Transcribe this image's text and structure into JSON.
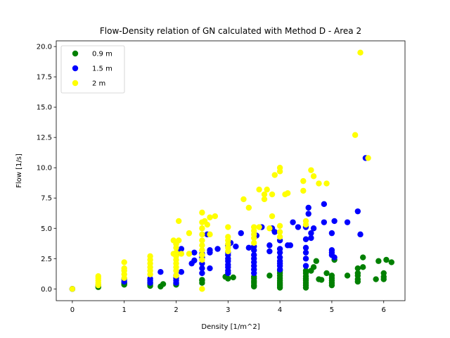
{
  "chart_data": {
    "type": "scatter",
    "title": "Flow-Density relation of GN calculated with Method D - Area 2",
    "xlabel": "Density [1/m^2]",
    "ylabel": "Flow [1/s]",
    "xlim": [
      -0.31,
      6.41
    ],
    "ylim": [
      -0.97,
      20.47
    ],
    "xticks": [
      "0",
      "1",
      "2",
      "3",
      "4",
      "5",
      "6"
    ],
    "yticks": [
      "0.0",
      "2.5",
      "5.0",
      "7.5",
      "10.0",
      "12.5",
      "15.0",
      "17.5",
      "20.0"
    ],
    "grid": false,
    "legend_position": "top-left",
    "series": [
      {
        "name": "0.9 m",
        "color": "#008000",
        "points": [
          [
            0,
            0
          ],
          [
            0.5,
            0.15
          ],
          [
            0.5,
            0.2
          ],
          [
            1,
            0.35
          ],
          [
            1,
            0.45
          ],
          [
            1,
            0.5
          ],
          [
            1.5,
            0.25
          ],
          [
            1.5,
            0.4
          ],
          [
            1.5,
            0.55
          ],
          [
            1.7,
            0.2
          ],
          [
            1.75,
            0.4
          ],
          [
            2,
            0.35
          ],
          [
            2,
            0.45
          ],
          [
            2.5,
            0.5
          ],
          [
            2.5,
            0.7
          ],
          [
            2.5,
            0.75
          ],
          [
            2.95,
            1.0
          ],
          [
            3,
            0.85
          ],
          [
            3.1,
            0.95
          ],
          [
            3.5,
            0.2
          ],
          [
            3.5,
            0.3
          ],
          [
            3.5,
            0.5
          ],
          [
            3.5,
            0.65
          ],
          [
            3.5,
            0.85
          ],
          [
            3.5,
            1.0
          ],
          [
            3.8,
            1.1
          ],
          [
            4,
            0.1
          ],
          [
            4,
            0.25
          ],
          [
            4,
            0.4
          ],
          [
            4,
            0.55
          ],
          [
            4,
            0.7
          ],
          [
            4,
            0.9
          ],
          [
            4,
            1.1
          ],
          [
            4,
            1.3
          ],
          [
            4,
            1.5
          ],
          [
            4.5,
            0.1
          ],
          [
            4.5,
            0.3
          ],
          [
            4.5,
            0.5
          ],
          [
            4.5,
            0.7
          ],
          [
            4.5,
            0.85
          ],
          [
            4.5,
            1.05
          ],
          [
            4.5,
            1.3
          ],
          [
            4.5,
            1.5
          ],
          [
            4.6,
            1.5
          ],
          [
            4.65,
            1.8
          ],
          [
            4.7,
            2.3
          ],
          [
            4.75,
            0.8
          ],
          [
            4.8,
            0.75
          ],
          [
            4.9,
            1.3
          ],
          [
            5,
            0.3
          ],
          [
            5,
            0.5
          ],
          [
            5,
            0.7
          ],
          [
            5,
            0.9
          ],
          [
            5,
            1.1
          ],
          [
            5.05,
            2.4
          ],
          [
            5.3,
            1.1
          ],
          [
            5.5,
            0.6
          ],
          [
            5.5,
            0.8
          ],
          [
            5.5,
            1.1
          ],
          [
            5.5,
            1.3
          ],
          [
            5.5,
            1.7
          ],
          [
            5.6,
            1.8
          ],
          [
            5.6,
            2.6
          ],
          [
            5.85,
            0.8
          ],
          [
            5.9,
            2.3
          ],
          [
            6,
            0.8
          ],
          [
            6,
            1.0
          ],
          [
            6,
            1.3
          ],
          [
            6.05,
            2.4
          ],
          [
            6.15,
            2.2
          ]
        ]
      },
      {
        "name": "1.5 m",
        "color": "#0000ff",
        "points": [
          [
            0,
            0
          ],
          [
            0.5,
            0.3
          ],
          [
            1,
            0.6
          ],
          [
            1,
            0.8
          ],
          [
            1.5,
            0.5
          ],
          [
            1.5,
            0.7
          ],
          [
            1.5,
            0.85
          ],
          [
            1.7,
            1.4
          ],
          [
            2,
            0.5
          ],
          [
            2,
            0.7
          ],
          [
            2,
            0.9
          ],
          [
            2,
            1.1
          ],
          [
            2.1,
            1.4
          ],
          [
            2.05,
            3.0
          ],
          [
            2.1,
            3.3
          ],
          [
            2.3,
            2.1
          ],
          [
            2.35,
            2.35
          ],
          [
            2.35,
            3.0
          ],
          [
            2.5,
            1.3
          ],
          [
            2.5,
            1.7
          ],
          [
            2.5,
            2.1
          ],
          [
            2.5,
            2.6
          ],
          [
            2.5,
            2.9
          ],
          [
            2.65,
            1.7
          ],
          [
            2.65,
            3.0
          ],
          [
            2.65,
            3.2
          ],
          [
            2.6,
            4.5
          ],
          [
            2.8,
            3.3
          ],
          [
            3,
            1.3
          ],
          [
            3,
            1.5
          ],
          [
            3,
            1.8
          ],
          [
            3,
            2.0
          ],
          [
            3,
            2.3
          ],
          [
            3,
            2.5
          ],
          [
            3,
            2.8
          ],
          [
            3,
            3.0
          ],
          [
            3,
            3.6
          ],
          [
            3.05,
            3.8
          ],
          [
            3.15,
            3.5
          ],
          [
            3.25,
            4.6
          ],
          [
            3.4,
            3.4
          ],
          [
            3.5,
            1.3
          ],
          [
            3.5,
            1.6
          ],
          [
            3.5,
            1.9
          ],
          [
            3.5,
            2.2
          ],
          [
            3.5,
            2.5
          ],
          [
            3.5,
            2.8
          ],
          [
            3.5,
            3.2
          ],
          [
            3.5,
            3.5
          ],
          [
            3.55,
            4.4
          ],
          [
            3.65,
            5.1
          ],
          [
            3.8,
            3.1
          ],
          [
            3.8,
            3.6
          ],
          [
            3.85,
            5.0
          ],
          [
            3.9,
            4.7
          ],
          [
            4,
            1.6
          ],
          [
            4,
            1.9
          ],
          [
            4,
            2.1
          ],
          [
            4,
            2.3
          ],
          [
            4,
            2.6
          ],
          [
            4,
            3.0
          ],
          [
            4,
            3.3
          ],
          [
            4,
            4.0
          ],
          [
            4.15,
            3.6
          ],
          [
            4.2,
            3.6
          ],
          [
            4.25,
            5.5
          ],
          [
            4.35,
            5.1
          ],
          [
            4.5,
            1.9
          ],
          [
            4.5,
            2.5
          ],
          [
            4.5,
            3.0
          ],
          [
            4.5,
            3.4
          ],
          [
            4.5,
            4.1
          ],
          [
            4.5,
            5.1
          ],
          [
            4.55,
            6.2
          ],
          [
            4.55,
            6.7
          ],
          [
            4.6,
            4.2
          ],
          [
            4.6,
            4.6
          ],
          [
            4.65,
            5.0
          ],
          [
            4.85,
            5.5
          ],
          [
            4.85,
            7.0
          ],
          [
            5,
            2.8
          ],
          [
            5,
            3.0
          ],
          [
            5,
            3.2
          ],
          [
            5,
            4.6
          ],
          [
            5.05,
            5.6
          ],
          [
            5.05,
            2.6
          ],
          [
            5.3,
            5.5
          ],
          [
            5.5,
            6.4
          ],
          [
            5.55,
            4.5
          ],
          [
            5.65,
            10.8
          ]
        ]
      },
      {
        "name": "2 m",
        "color": "#ffff00",
        "points": [
          [
            0,
            0
          ],
          [
            0.5,
            0.3
          ],
          [
            0.5,
            0.5
          ],
          [
            0.5,
            0.7
          ],
          [
            0.5,
            0.9
          ],
          [
            0.5,
            1.05
          ],
          [
            1,
            0.9
          ],
          [
            1,
            1.2
          ],
          [
            1,
            1.5
          ],
          [
            1,
            1.7
          ],
          [
            1,
            2.2
          ],
          [
            1.5,
            1.2
          ],
          [
            1.5,
            1.5
          ],
          [
            1.5,
            1.8
          ],
          [
            1.5,
            2.1
          ],
          [
            1.5,
            2.4
          ],
          [
            1.5,
            2.7
          ],
          [
            1.95,
            2.9
          ],
          [
            2,
            1.1
          ],
          [
            2,
            1.5
          ],
          [
            2,
            1.8
          ],
          [
            2,
            2.1
          ],
          [
            2,
            2.4
          ],
          [
            2,
            2.7
          ],
          [
            2,
            3.0
          ],
          [
            2,
            3.4
          ],
          [
            2,
            3.7
          ],
          [
            1.95,
            4.0
          ],
          [
            2.05,
            4.0
          ],
          [
            2.1,
            2.9
          ],
          [
            2.05,
            5.6
          ],
          [
            2.25,
            2.9
          ],
          [
            2.25,
            4.6
          ],
          [
            2.5,
            0
          ],
          [
            2.5,
            2.4
          ],
          [
            2.5,
            2.8
          ],
          [
            2.5,
            3.2
          ],
          [
            2.5,
            3.6
          ],
          [
            2.5,
            4.0
          ],
          [
            2.5,
            4.5
          ],
          [
            2.5,
            5.0
          ],
          [
            2.5,
            5.5
          ],
          [
            2.5,
            6.3
          ],
          [
            2.55,
            5.6
          ],
          [
            2.6,
            5.3
          ],
          [
            2.65,
            4.5
          ],
          [
            2.65,
            5.9
          ],
          [
            2.75,
            6.0
          ],
          [
            3,
            3.1
          ],
          [
            3,
            3.4
          ],
          [
            3,
            3.7
          ],
          [
            3,
            4.0
          ],
          [
            3,
            4.3
          ],
          [
            3,
            5.1
          ],
          [
            3.3,
            7.4
          ],
          [
            3.4,
            6.7
          ],
          [
            3.5,
            3.8
          ],
          [
            3.5,
            4.2
          ],
          [
            3.5,
            4.5
          ],
          [
            3.5,
            4.8
          ],
          [
            3.5,
            5.1
          ],
          [
            3.6,
            5.1
          ],
          [
            3.6,
            8.2
          ],
          [
            3.7,
            7.4
          ],
          [
            3.7,
            7.8
          ],
          [
            3.75,
            8.2
          ],
          [
            3.8,
            5.0
          ],
          [
            3.85,
            6.0
          ],
          [
            3.85,
            7.8
          ],
          [
            3.9,
            9.4
          ],
          [
            4,
            4.3
          ],
          [
            4,
            4.7
          ],
          [
            4,
            5.2
          ],
          [
            4,
            9.7
          ],
          [
            4,
            10.0
          ],
          [
            4.1,
            7.8
          ],
          [
            4.15,
            7.9
          ],
          [
            4.45,
            8.1
          ],
          [
            4.45,
            8.9
          ],
          [
            4.5,
            5.3
          ],
          [
            4.5,
            5.6
          ],
          [
            4.6,
            9.8
          ],
          [
            4.65,
            9.3
          ],
          [
            4.75,
            8.7
          ],
          [
            4.9,
            8.7
          ],
          [
            5.45,
            12.7
          ],
          [
            5.55,
            19.5
          ],
          [
            5.7,
            10.8
          ]
        ]
      }
    ]
  }
}
